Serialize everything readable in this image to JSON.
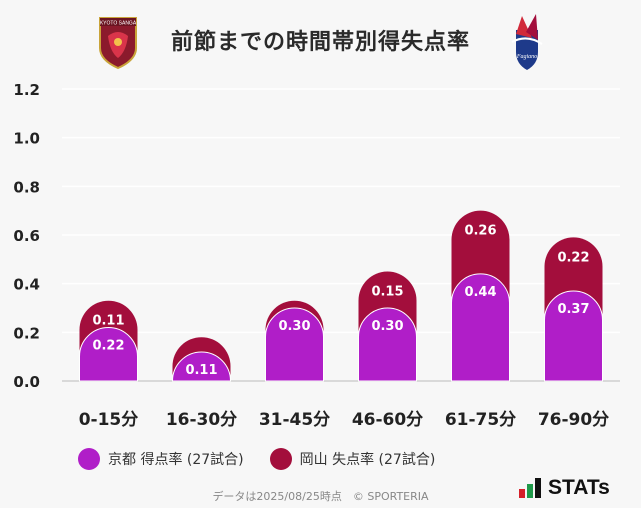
{
  "title": "前節までの時間帯別得失点率",
  "footer": "データは2025/08/25時点　© SPORTERIA",
  "brand": "STATs",
  "teams": {
    "home": {
      "name": "KYOTO SANGA",
      "color": "#b01ec8"
    },
    "away": {
      "name": "Fagiano",
      "color": "#a30e3c"
    }
  },
  "legend": [
    {
      "label": "京都 得点率 (27試合)",
      "color": "#b01ec8"
    },
    {
      "label": "岡山 失点率 (27試合)",
      "color": "#a30e3c"
    }
  ],
  "chart_data": {
    "type": "bar",
    "stacked": true,
    "title": "前節までの時間帯別得失点率",
    "categories": [
      "0-15分",
      "16-30分",
      "31-45分",
      "46-60分",
      "61-75分",
      "76-90分"
    ],
    "series": [
      {
        "name": "京都 得点率 (27試合)",
        "color": "#b01ec8",
        "values": [
          0.22,
          0.11,
          0.3,
          0.3,
          0.44,
          0.37
        ],
        "labels": [
          "0.22",
          "0.11",
          "0.30",
          "0.30",
          "0.44",
          "0.37"
        ]
      },
      {
        "name": "岡山 失点率 (27試合)",
        "color": "#a30e3c",
        "values": [
          0.11,
          0.07,
          0.03,
          0.15,
          0.26,
          0.22
        ],
        "labels": [
          "0.11",
          "",
          "",
          "0.15",
          "0.26",
          "0.22"
        ]
      }
    ],
    "yticks": [
      "0.0",
      "0.2",
      "0.4",
      "0.6",
      "0.8",
      "1.0",
      "1.2"
    ],
    "ylim": [
      0,
      1.2
    ],
    "xlabel": "",
    "ylabel": "",
    "grid": true,
    "legend_position": "bottom"
  }
}
